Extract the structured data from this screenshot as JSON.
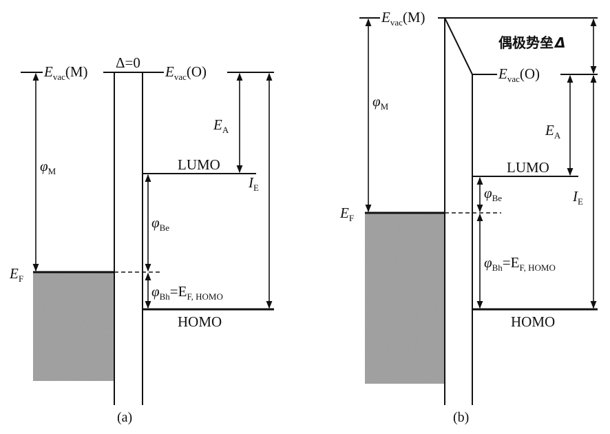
{
  "panel_a": {
    "caption": "(a)",
    "evac_m": {
      "main": "E",
      "sub": "vac",
      "tail": "(M)"
    },
    "delta": "Δ=0",
    "evac_o": {
      "main": "E",
      "sub": "vac",
      "tail": "(O)"
    },
    "phi_m": {
      "main": "φ",
      "sub": "M"
    },
    "ea": {
      "main": "E",
      "sub": "A"
    },
    "lumo": "LUMO",
    "ie": {
      "main": "I",
      "sub": "E"
    },
    "phi_be": {
      "main": "φ",
      "sub": "Be"
    },
    "ef": {
      "main": "E",
      "sub": "F"
    },
    "phi_bh": {
      "main": "φ",
      "sub": "Bh",
      "eq": "=E",
      "eq_sub": "F, HOMO"
    },
    "homo": "HOMO"
  },
  "panel_b": {
    "caption": "(b)",
    "evac_m": {
      "main": "E",
      "sub": "vac",
      "tail": "(M)"
    },
    "dipole": {
      "text": "偶极势垒",
      "symbol": "Δ"
    },
    "evac_o": {
      "main": "E",
      "sub": "vac",
      "tail": "(O)"
    },
    "phi_m": {
      "main": "φ",
      "sub": "M"
    },
    "ea": {
      "main": "E",
      "sub": "A"
    },
    "lumo": "LUMO",
    "ie": {
      "main": "I",
      "sub": "E"
    },
    "phi_be": {
      "main": "φ",
      "sub": "Be"
    },
    "ef": {
      "main": "E",
      "sub": "F"
    },
    "phi_bh": {
      "main": "φ",
      "sub": "Bh",
      "eq": "=E",
      "eq_sub": "F, HOMO"
    },
    "homo": "HOMO"
  },
  "colors": {
    "ink": "#111111",
    "metal_fill": "#8c8c8c",
    "background": "#ffffff"
  }
}
